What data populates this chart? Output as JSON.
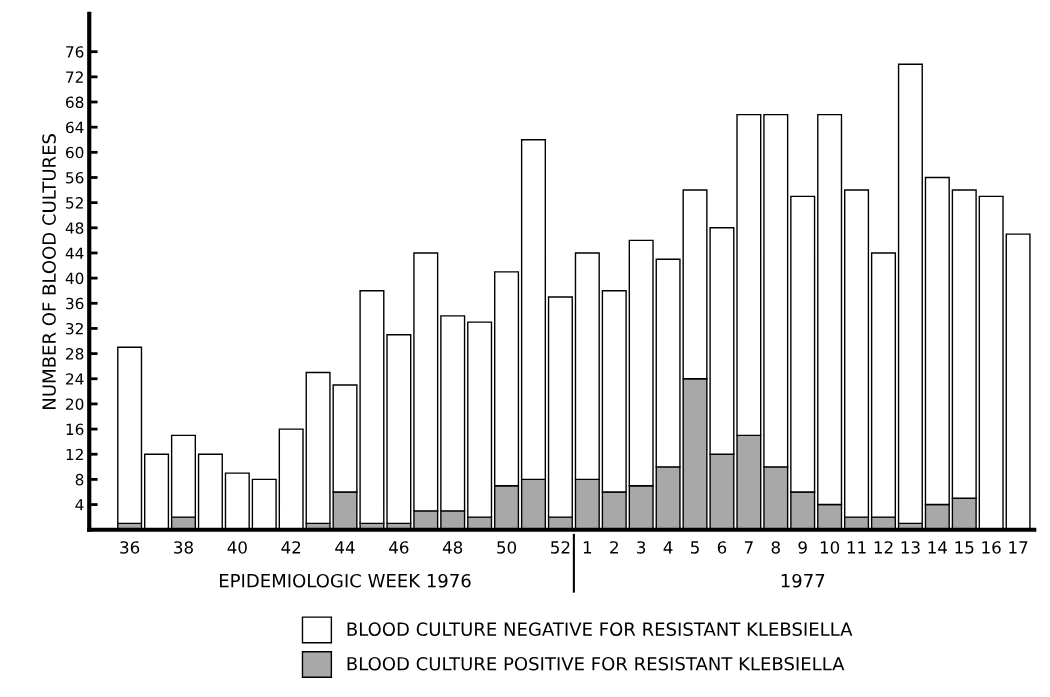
{
  "chart_data": {
    "type": "bar",
    "stacked": true,
    "ylabel": "NUMBER OF BLOOD CULTURES",
    "xlabel": "EPIDEMIOLOGIC WEEK 1976",
    "annotations": [
      "1977"
    ],
    "categories": [
      "36",
      null,
      "38",
      null,
      "40",
      null,
      "42",
      null,
      "44",
      null,
      "46",
      null,
      "48",
      null,
      "50",
      null,
      "52",
      "1",
      "2",
      "3",
      "4",
      "5",
      "6",
      "7",
      "8",
      "9",
      "10",
      "11",
      "12",
      "13",
      "14",
      "15",
      "16",
      "17"
    ],
    "series": [
      {
        "name": "BLOOD CULTURE POSITIVE FOR RESISTANT KLEBSIELLA",
        "color": "#a8a8a8",
        "values": [
          1,
          0,
          2,
          0,
          0,
          0,
          0,
          1,
          6,
          1,
          1,
          3,
          3,
          2,
          7,
          8,
          2,
          8,
          6,
          7,
          10,
          24,
          12,
          15,
          10,
          6,
          4,
          2,
          2,
          1,
          4,
          5,
          0,
          0
        ]
      },
      {
        "name": "BLOOD CULTURE NEGATIVE FOR RESISTANT KLEBSIELLA",
        "color": "#ffffff",
        "values": [
          28,
          12,
          13,
          12,
          9,
          8,
          16,
          24,
          17,
          37,
          30,
          41,
          31,
          31,
          34,
          54,
          35,
          36,
          32,
          39,
          33,
          30,
          36,
          51,
          56,
          47,
          62,
          52,
          42,
          73,
          52,
          49,
          53,
          47
        ]
      }
    ],
    "ylim": [
      0,
      82
    ],
    "yticks": [
      4,
      8,
      12,
      16,
      20,
      24,
      28,
      32,
      36,
      40,
      44,
      48,
      52,
      56,
      60,
      64,
      68,
      72,
      76
    ],
    "grid": false,
    "legend": "bottom"
  }
}
